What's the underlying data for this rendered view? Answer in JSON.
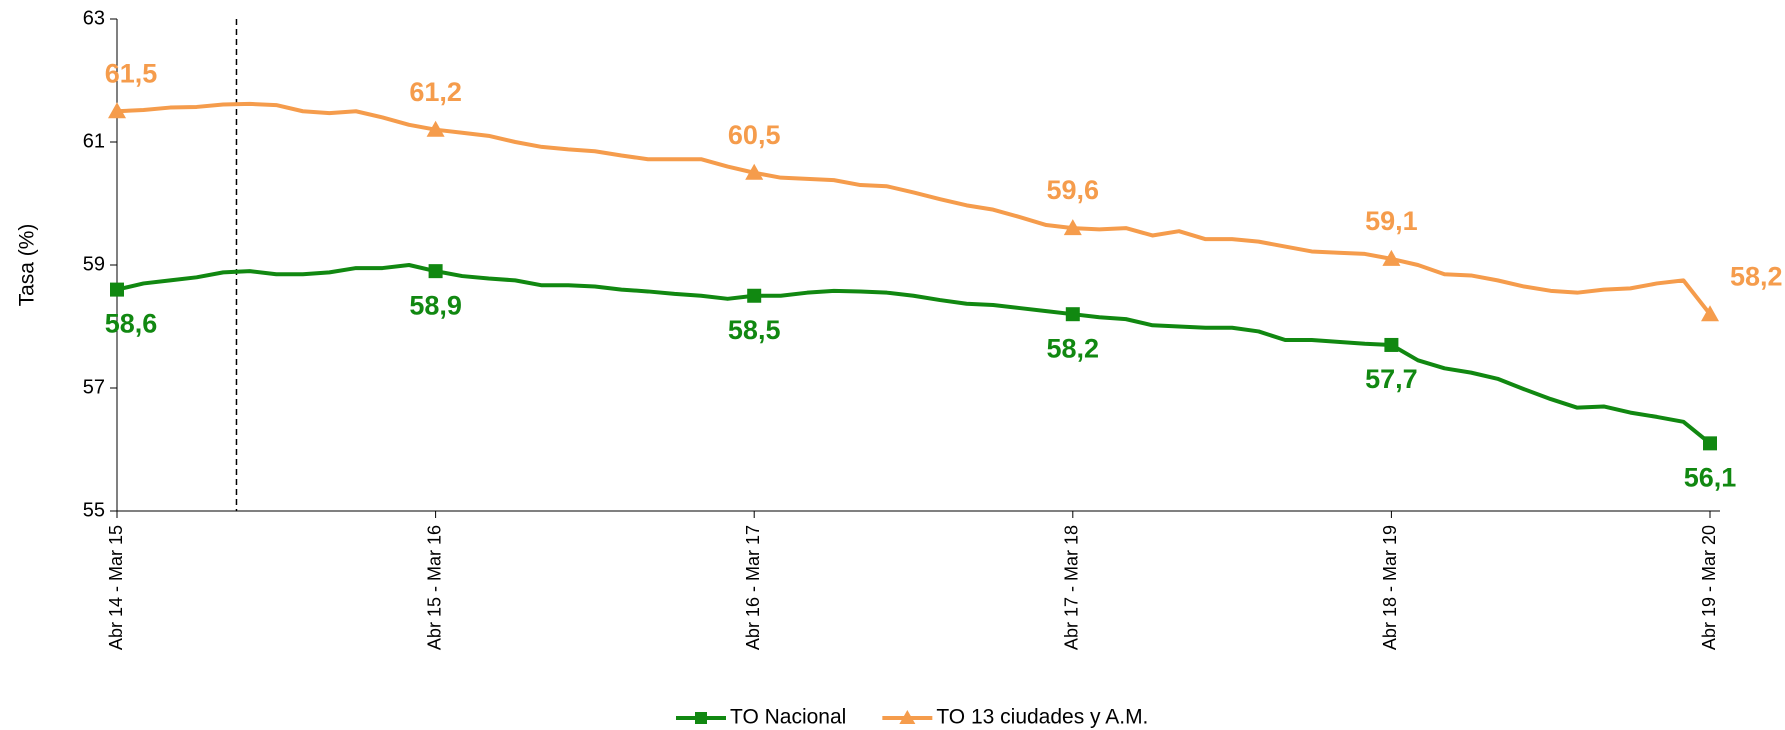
{
  "chart_data": {
    "type": "line",
    "ylabel": "Tasa (%)",
    "categories": [
      "Abr 14 - Mar 15",
      null,
      null,
      null,
      null,
      null,
      null,
      null,
      null,
      null,
      null,
      null,
      "Abr 15 - Mar 16",
      null,
      null,
      null,
      null,
      null,
      null,
      null,
      null,
      null,
      null,
      null,
      "Abr 16 - Mar 17",
      null,
      null,
      null,
      null,
      null,
      null,
      null,
      null,
      null,
      null,
      null,
      "Abr 17 - Mar 18",
      null,
      null,
      null,
      null,
      null,
      null,
      null,
      null,
      null,
      null,
      null,
      "Abr 18 - Mar 19",
      null,
      null,
      null,
      null,
      null,
      null,
      null,
      null,
      null,
      null,
      null,
      "Abr 19 - Mar 20"
    ],
    "series": [
      {
        "name": "TO Nacional",
        "color": "#118811",
        "marker": "square",
        "values": [
          58.6,
          58.7,
          58.75,
          58.8,
          58.88,
          58.9,
          58.85,
          58.85,
          58.88,
          58.95,
          58.95,
          59.0,
          58.9,
          58.82,
          58.78,
          58.75,
          58.67,
          58.67,
          58.65,
          58.6,
          58.57,
          58.53,
          58.5,
          58.45,
          58.5,
          58.5,
          58.55,
          58.58,
          58.57,
          58.55,
          58.5,
          58.43,
          58.37,
          58.35,
          58.3,
          58.25,
          58.2,
          58.15,
          58.12,
          58.02,
          58.0,
          57.98,
          57.98,
          57.92,
          57.78,
          57.78,
          57.75,
          57.72,
          57.7,
          57.45,
          57.32,
          57.25,
          57.15,
          56.98,
          56.82,
          56.68,
          56.7,
          56.6,
          56.53,
          56.45,
          56.1
        ],
        "value_labels": [
          "58,6",
          null,
          null,
          null,
          null,
          null,
          null,
          null,
          null,
          null,
          null,
          null,
          "58,9",
          null,
          null,
          null,
          null,
          null,
          null,
          null,
          null,
          null,
          null,
          null,
          "58,5",
          null,
          null,
          null,
          null,
          null,
          null,
          null,
          null,
          null,
          null,
          null,
          "58,2",
          null,
          null,
          null,
          null,
          null,
          null,
          null,
          null,
          null,
          null,
          null,
          "57,7",
          null,
          null,
          null,
          null,
          null,
          null,
          null,
          null,
          null,
          null,
          null,
          "56,1"
        ]
      },
      {
        "name": "TO 13 ciudades y A.M.",
        "color": "#f59c4c",
        "marker": "triangle",
        "values": [
          61.5,
          61.52,
          61.56,
          61.57,
          61.61,
          61.62,
          61.6,
          61.5,
          61.47,
          61.5,
          61.4,
          61.28,
          61.2,
          61.15,
          61.1,
          61.0,
          60.92,
          60.88,
          60.85,
          60.78,
          60.72,
          60.72,
          60.72,
          60.6,
          60.5,
          60.42,
          60.4,
          60.38,
          60.3,
          60.28,
          60.18,
          60.07,
          59.97,
          59.9,
          59.78,
          59.65,
          59.6,
          59.58,
          59.6,
          59.48,
          59.55,
          59.42,
          59.42,
          59.38,
          59.3,
          59.22,
          59.2,
          59.18,
          59.1,
          59.0,
          58.85,
          58.83,
          58.75,
          58.65,
          58.58,
          58.55,
          58.6,
          58.62,
          58.7,
          58.75,
          58.2
        ],
        "value_labels": [
          "61,5",
          null,
          null,
          null,
          null,
          null,
          null,
          null,
          null,
          null,
          null,
          null,
          "61,2",
          null,
          null,
          null,
          null,
          null,
          null,
          null,
          null,
          null,
          null,
          null,
          "60,5",
          null,
          null,
          null,
          null,
          null,
          null,
          null,
          null,
          null,
          null,
          null,
          "59,6",
          null,
          null,
          null,
          null,
          null,
          null,
          null,
          null,
          null,
          null,
          null,
          "59,1",
          null,
          null,
          null,
          null,
          null,
          null,
          null,
          null,
          null,
          null,
          null,
          "58,2"
        ]
      }
    ],
    "ylim": [
      55,
      63
    ],
    "yticks": [
      55,
      57,
      59,
      61,
      63
    ],
    "grid": false,
    "legend": "bottom"
  }
}
